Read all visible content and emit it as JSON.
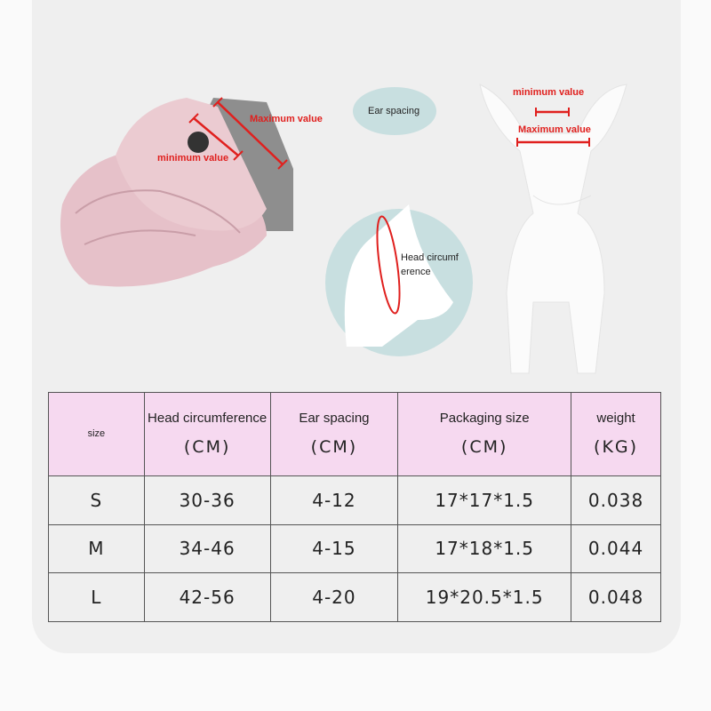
{
  "annotations": {
    "hat_max": "Maximum value",
    "hat_min": "minimum value",
    "ear_spacing": "Ear spacing",
    "head_circ": "Head circumf erence",
    "dog_min": "minimum value",
    "dog_max": "Maximum value"
  },
  "colors": {
    "header_bg": "#f6d9f0",
    "annotation_red": "#e0201e",
    "bubble": "#c8dfe0",
    "hat_pink": "#e8c3ca"
  },
  "table": {
    "headers": [
      {
        "title": "size",
        "unit": ""
      },
      {
        "title": "Head circumference",
        "unit": "(CM)"
      },
      {
        "title": "Ear spacing",
        "unit": "(CM)"
      },
      {
        "title": "Packaging size",
        "unit": "(CM)"
      },
      {
        "title": "weight",
        "unit": "(KG)"
      }
    ],
    "rows": [
      [
        "S",
        "30-36",
        "4-12",
        "17*17*1.5",
        "0.038"
      ],
      [
        "M",
        "34-46",
        "4-15",
        "17*18*1.5",
        "0.044"
      ],
      [
        "L",
        "42-56",
        "4-20",
        "19*20.5*1.5",
        "0.048"
      ]
    ]
  }
}
